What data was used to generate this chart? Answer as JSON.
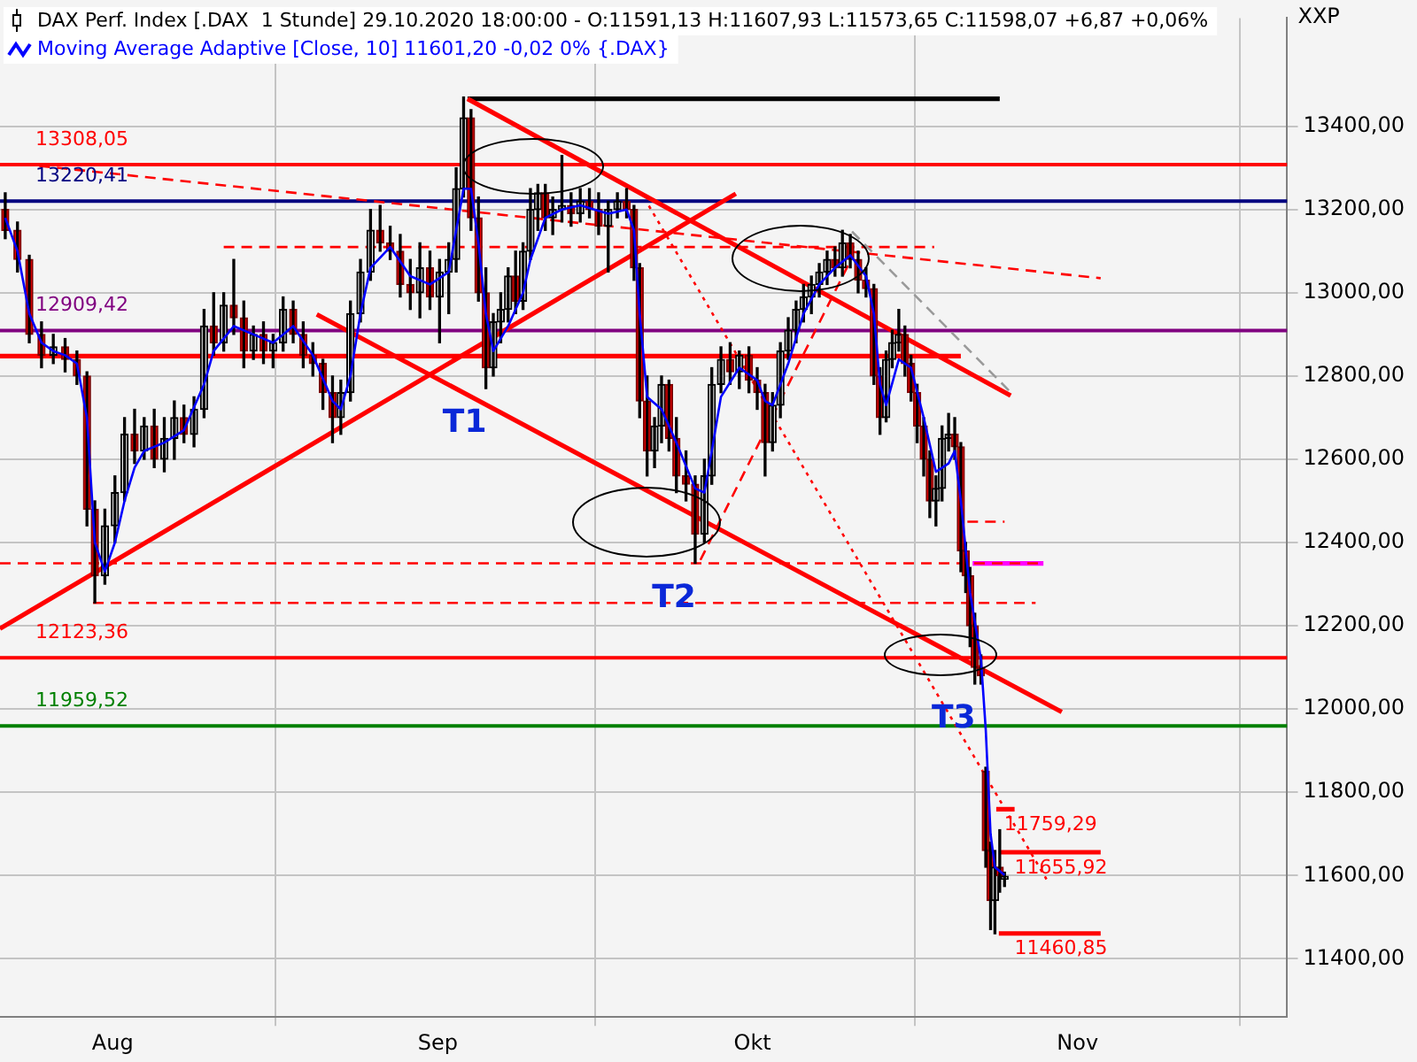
{
  "chart_data": {
    "type": "candlestick",
    "title": "DAX Perf. Index [.DAX  1 Stunde] 29.10.2020 18:00:00 - O:11591,13 H:11607,93 L:11573,65 C:11598,07 +6,87 +0,06%",
    "annotations": [
      "XXP",
      {
        "text": "T1",
        "x": "2020-09-05T14:00",
        "y": 12770
      },
      {
        "text": "T2",
        "x": "2020-09-25T13:00",
        "y": 12350
      },
      {
        "text": "T3",
        "x": "2020-10-22T05:00",
        "y": 12060
      },
      {
        "text": "11759,29",
        "x": "2020-10-25T00:00",
        "y": 11759.29
      },
      {
        "text": "11655,92",
        "x": "2020-10-26T00:00",
        "y": 11655.92
      },
      {
        "text": "11460,85",
        "x": "2020-10-26T00:00",
        "y": 11460.85
      }
    ],
    "x": [
      "2020-07-21T18:00",
      "2020-07-22T22:00",
      "2020-07-24T01:00",
      "2020-07-25T05:00",
      "2020-07-26T08:00",
      "2020-07-27T11:00",
      "2020-07-28T14:00",
      "2020-07-29T13:00",
      "2020-07-30T07:00",
      "2020-07-31T06:00",
      "2020-08-01T05:00",
      "2020-08-02T03:00",
      "2020-08-03T02:00",
      "2020-08-04T00:00",
      "2020-08-04T23:00",
      "2020-08-05T22:00",
      "2020-08-06T21:00",
      "2020-08-07T19:00",
      "2020-08-08T18:00",
      "2020-08-09T17:00",
      "2020-08-10T15:00",
      "2020-08-11T14:00",
      "2020-08-12T13:00",
      "2020-08-13T12:00",
      "2020-08-14T10:00",
      "2020-08-15T09:00",
      "2020-08-16T07:00",
      "2020-08-17T06:00",
      "2020-08-18T05:00",
      "2020-08-19T04:00",
      "2020-08-20T02:00",
      "2020-08-21T01:00",
      "2020-08-21T23:00",
      "2020-08-22T18:00",
      "2020-08-23T16:00",
      "2020-08-24T15:00",
      "2020-08-25T14:00",
      "2020-08-26T12:00",
      "2020-08-27T11:00",
      "2020-08-28T10:00",
      "2020-08-29T09:00",
      "2020-08-30T07:00",
      "2020-08-31T06:00",
      "2020-09-01T04:00",
      "2020-09-02T01:00",
      "2020-09-02T18:00",
      "2020-09-03T11:00",
      "2020-09-04T04:00",
      "2020-09-04T21:00",
      "2020-09-05T14:00",
      "2020-09-06T07:00",
      "2020-09-07T00:00",
      "2020-09-07T17:00",
      "2020-09-08T10:00",
      "2020-09-09T03:00",
      "2020-09-09T20:00",
      "2020-09-10T13:00",
      "2020-09-11T06:00",
      "2020-09-11T23:00",
      "2020-09-12T20:00",
      "2020-09-13T17:00",
      "2020-09-14T14:00",
      "2020-09-15T11:00",
      "2020-09-16T08:00",
      "2020-09-17T06:00",
      "2020-09-18T03:00",
      "2020-09-19T00:00",
      "2020-09-19T17:00",
      "2020-09-20T06:00",
      "2020-09-20T23:00",
      "2020-09-21T16:00",
      "2020-09-22T08:00",
      "2020-09-23T01:00",
      "2020-09-23T18:00",
      "2020-09-24T16:00",
      "2020-09-25T13:00",
      "2020-09-26T10:00",
      "2020-09-27T03:00",
      "2020-09-28T00:00",
      "2020-09-28T21:00",
      "2020-09-29T18:00",
      "2020-09-30T16:00",
      "2020-10-01T11:00",
      "2020-10-02T05:00",
      "2020-10-02T22:00",
      "2020-10-03T16:00",
      "2020-10-04T10:00",
      "2020-10-05T04:00",
      "2020-10-05T21:00",
      "2020-10-06T15:00",
      "2020-10-07T09:00",
      "2020-10-08T03:00",
      "2020-10-08T21:00",
      "2020-10-09T14:00",
      "2020-10-10T08:00",
      "2020-10-11T02:00",
      "2020-10-11T20:00",
      "2020-10-12T14:00",
      "2020-10-13T04:00",
      "2020-10-13T18:00",
      "2020-10-14T08:00",
      "2020-10-14T23:00",
      "2020-10-15T13:00",
      "2020-10-16T03:00",
      "2020-10-16T17:00",
      "2020-10-17T08:00",
      "2020-10-17T22:00",
      "2020-10-18T12:00",
      "2020-10-19T02:00",
      "2020-10-19T17:00",
      "2020-10-20T07:00",
      "2020-10-20T21:00",
      "2020-10-21T08:00",
      "2020-10-21T18:00",
      "2020-10-22T05:00",
      "2020-10-22T19:00",
      "2020-10-23T06:00",
      "2020-10-23T17:00",
      "2020-10-24T03:00",
      "2020-10-24T14:00",
      "2020-10-25T01:00"
    ],
    "ohlc": [
      [
        13200,
        13240,
        13130,
        13150
      ],
      [
        13150,
        13170,
        13050,
        13080
      ],
      [
        13080,
        13090,
        12880,
        12900
      ],
      [
        12900,
        12930,
        12820,
        12850
      ],
      [
        12850,
        12900,
        12830,
        12870
      ],
      [
        12870,
        12890,
        12810,
        12840
      ],
      [
        12840,
        12860,
        12780,
        12800
      ],
      [
        12800,
        12810,
        12440,
        12480
      ],
      [
        12480,
        12500,
        12255,
        12320
      ],
      [
        12320,
        12480,
        12300,
        12440
      ],
      [
        12440,
        12560,
        12400,
        12520
      ],
      [
        12520,
        12700,
        12500,
        12660
      ],
      [
        12660,
        12720,
        12590,
        12620
      ],
      [
        12620,
        12700,
        12600,
        12680
      ],
      [
        12680,
        12720,
        12580,
        12600
      ],
      [
        12600,
        12700,
        12570,
        12650
      ],
      [
        12650,
        12740,
        12600,
        12700
      ],
      [
        12700,
        12730,
        12640,
        12660
      ],
      [
        12660,
        12750,
        12630,
        12720
      ],
      [
        12720,
        12960,
        12700,
        12920
      ],
      [
        12920,
        13000,
        12850,
        12880
      ],
      [
        12880,
        13000,
        12860,
        12970
      ],
      [
        12970,
        13080,
        12900,
        12940
      ],
      [
        12940,
        12980,
        12820,
        12860
      ],
      [
        12860,
        12920,
        12840,
        12900
      ],
      [
        12900,
        12930,
        12830,
        12860
      ],
      [
        12860,
        12900,
        12820,
        12880
      ],
      [
        12880,
        12990,
        12860,
        12960
      ],
      [
        12960,
        12980,
        12880,
        12900
      ],
      [
        12900,
        12930,
        12820,
        12850
      ],
      [
        12850,
        12880,
        12800,
        12830
      ],
      [
        12830,
        12840,
        12720,
        12760
      ],
      [
        12760,
        12800,
        12640,
        12700
      ],
      [
        12700,
        12790,
        12660,
        12760
      ],
      [
        12760,
        12980,
        12740,
        12950
      ],
      [
        12950,
        13080,
        12930,
        13050
      ],
      [
        13050,
        13200,
        13030,
        13150
      ],
      [
        13150,
        13210,
        13100,
        13120
      ],
      [
        13120,
        13160,
        13080,
        13100
      ],
      [
        13100,
        13140,
        12990,
        13020
      ],
      [
        13020,
        13080,
        12960,
        13000
      ],
      [
        13000,
        13120,
        12940,
        13060
      ],
      [
        13060,
        13100,
        12960,
        12990
      ],
      [
        12990,
        13080,
        12880,
        13050
      ],
      [
        13050,
        13120,
        12950,
        13080
      ],
      [
        13080,
        13300,
        13050,
        13250
      ],
      [
        13250,
        13470,
        13230,
        13420
      ],
      [
        13420,
        13440,
        13150,
        13180
      ],
      [
        13180,
        13230,
        12980,
        13000
      ],
      [
        13000,
        13060,
        12770,
        12820
      ],
      [
        12820,
        12950,
        12800,
        12930
      ],
      [
        12930,
        13000,
        12880,
        12960
      ],
      [
        12960,
        13060,
        12930,
        13040
      ],
      [
        13040,
        13100,
        12950,
        12980
      ],
      [
        12980,
        13120,
        12960,
        13100
      ],
      [
        13100,
        13250,
        13080,
        13200
      ],
      [
        13200,
        13260,
        13150,
        13240
      ],
      [
        13240,
        13260,
        13150,
        13180
      ],
      [
        13180,
        13230,
        13140,
        13200
      ],
      [
        13200,
        13330,
        13170,
        13210
      ],
      [
        13210,
        13240,
        13160,
        13190
      ],
      [
        13190,
        13250,
        13170,
        13220
      ],
      [
        13220,
        13250,
        13180,
        13200
      ],
      [
        13200,
        13240,
        13140,
        13160
      ],
      [
        13160,
        13220,
        13050,
        13200
      ],
      [
        13200,
        13240,
        13180,
        13220
      ],
      [
        13220,
        13250,
        13180,
        13200
      ],
      [
        13200,
        13210,
        13030,
        13060
      ],
      [
        13060,
        13070,
        12700,
        12740
      ],
      [
        12740,
        12800,
        12560,
        12620
      ],
      [
        12620,
        12700,
        12580,
        12680
      ],
      [
        12680,
        12800,
        12640,
        12780
      ],
      [
        12780,
        12790,
        12620,
        12650
      ],
      [
        12650,
        12700,
        12520,
        12560
      ],
      [
        12560,
        12620,
        12500,
        12540
      ],
      [
        12540,
        12560,
        12350,
        12420
      ],
      [
        12420,
        12600,
        12400,
        12560
      ],
      [
        12560,
        12820,
        12540,
        12780
      ],
      [
        12780,
        12870,
        12760,
        12840
      ],
      [
        12840,
        12880,
        12780,
        12810
      ],
      [
        12810,
        12860,
        12770,
        12850
      ],
      [
        12850,
        12870,
        12760,
        12790
      ],
      [
        12790,
        12820,
        12720,
        12760
      ],
      [
        12760,
        12780,
        12560,
        12640
      ],
      [
        12640,
        12760,
        12620,
        12730
      ],
      [
        12730,
        12880,
        12700,
        12860
      ],
      [
        12860,
        12940,
        12840,
        12910
      ],
      [
        12910,
        12980,
        12880,
        12960
      ],
      [
        12960,
        13020,
        12930,
        12990
      ],
      [
        12990,
        13040,
        12950,
        13020
      ],
      [
        13020,
        13070,
        12990,
        13050
      ],
      [
        13050,
        13100,
        13020,
        13080
      ],
      [
        13080,
        13110,
        13040,
        13060
      ],
      [
        13060,
        13150,
        13040,
        13120
      ],
      [
        13120,
        13140,
        13060,
        13080
      ],
      [
        13080,
        13100,
        13000,
        13030
      ],
      [
        13030,
        13060,
        12990,
        13010
      ],
      [
        13010,
        13020,
        12780,
        12800
      ],
      [
        12800,
        12820,
        12660,
        12700
      ],
      [
        12700,
        12860,
        12690,
        12840
      ],
      [
        12840,
        12910,
        12820,
        12880
      ],
      [
        12880,
        12960,
        12860,
        12900
      ],
      [
        12900,
        12920,
        12800,
        12830
      ],
      [
        12830,
        12850,
        12740,
        12760
      ],
      [
        12760,
        12780,
        12640,
        12680
      ],
      [
        12680,
        12700,
        12560,
        12600
      ],
      [
        12600,
        12620,
        12460,
        12500
      ],
      [
        12500,
        12560,
        12440,
        12530
      ],
      [
        12530,
        12680,
        12500,
        12650
      ],
      [
        12650,
        12710,
        12620,
        12660
      ],
      [
        12660,
        12700,
        12600,
        12630
      ],
      [
        12630,
        12640,
        12330,
        12380
      ],
      [
        12380,
        12400,
        12280,
        12320
      ],
      [
        12320,
        12340,
        12150,
        12200
      ],
      [
        12200,
        12230,
        12060,
        12100
      ],
      [
        12100,
        12130,
        12060,
        12080
      ],
      [
        11850,
        11860,
        11620,
        11660
      ],
      [
        11660,
        11680,
        11470,
        11540
      ],
      [
        11540,
        11660,
        11460,
        11620
      ],
      [
        11620,
        11710,
        11560,
        11600
      ],
      [
        11591.13,
        11607.93,
        11573.65,
        11598.07
      ]
    ],
    "series": [
      {
        "type": "line",
        "name": "Moving Average Adaptive [Close, 10] 11601,20 -0,02 0% {.DAX}",
        "color": "#0000ff",
        "x": [
          "2020-07-21T18:00",
          "2020-07-22T22:00",
          "2020-07-24T01:00",
          "2020-07-25T05:00",
          "2020-07-26T08:00",
          "2020-07-27T11:00",
          "2020-07-28T14:00",
          "2020-07-29T13:00",
          "2020-07-30T07:00",
          "2020-07-31T06:00",
          "2020-08-01T05:00",
          "2020-08-02T03:00",
          "2020-08-03T02:00",
          "2020-08-04T00:00",
          "2020-08-05T22:00",
          "2020-08-07T19:00",
          "2020-08-09T17:00",
          "2020-08-10T15:00",
          "2020-08-12T13:00",
          "2020-08-14T10:00",
          "2020-08-16T07:00",
          "2020-08-18T05:00",
          "2020-08-20T02:00",
          "2020-08-21T23:00",
          "2020-08-22T18:00",
          "2020-08-23T16:00",
          "2020-08-24T15:00",
          "2020-08-25T14:00",
          "2020-08-27T11:00",
          "2020-08-29T09:00",
          "2020-08-31T06:00",
          "2020-09-02T01:00",
          "2020-09-02T18:00",
          "2020-09-03T11:00",
          "2020-09-04T04:00",
          "2020-09-04T21:00",
          "2020-09-05T14:00",
          "2020-09-06T07:00",
          "2020-09-07T17:00",
          "2020-09-09T03:00",
          "2020-09-09T20:00",
          "2020-09-11T06:00",
          "2020-09-12T20:00",
          "2020-09-14T14:00",
          "2020-09-17T06:00",
          "2020-09-19T00:00",
          "2020-09-19T17:00",
          "2020-09-20T06:00",
          "2020-09-20T23:00",
          "2020-09-22T08:00",
          "2020-09-23T18:00",
          "2020-09-25T13:00",
          "2020-09-26T10:00",
          "2020-09-27T03:00",
          "2020-09-28T00:00",
          "2020-09-29T18:00",
          "2020-10-01T11:00",
          "2020-10-02T05:00",
          "2020-10-02T22:00",
          "2020-10-04T10:00",
          "2020-10-05T21:00",
          "2020-10-07T09:00",
          "2020-10-08T21:00",
          "2020-10-10T08:00",
          "2020-10-11T20:00",
          "2020-10-12T14:00",
          "2020-10-13T04:00",
          "2020-10-13T18:00",
          "2020-10-14T23:00",
          "2020-10-16T03:00",
          "2020-10-17T08:00",
          "2020-10-18T12:00",
          "2020-10-19T17:00",
          "2020-10-20T07:00",
          "2020-10-20T21:00",
          "2020-10-21T18:00",
          "2020-10-22T19:00",
          "2020-10-23T06:00",
          "2020-10-23T17:00",
          "2020-10-24T03:00",
          "2020-10-25T01:00"
        ],
        "values": [
          13180,
          13100,
          12950,
          12880,
          12860,
          12850,
          12830,
          12700,
          12400,
          12330,
          12400,
          12500,
          12580,
          12620,
          12640,
          12670,
          12780,
          12860,
          12920,
          12900,
          12880,
          12920,
          12850,
          12740,
          12720,
          12800,
          12950,
          13060,
          13110,
          13040,
          13020,
          13050,
          13150,
          13250,
          13250,
          13120,
          12950,
          12860,
          12920,
          13000,
          13080,
          13180,
          13200,
          13210,
          13190,
          13200,
          13150,
          12950,
          12750,
          12720,
          12640,
          12530,
          12520,
          12620,
          12750,
          12820,
          12790,
          12740,
          12730,
          12830,
          12950,
          13020,
          13060,
          13090,
          13040,
          12950,
          12780,
          12730,
          12840,
          12820,
          12700,
          12570,
          12590,
          12620,
          12500,
          12280,
          12120,
          11950,
          11700,
          11620,
          11601.2
        ]
      },
      {
        "type": "line",
        "color": "#ff0000",
        "x": [
          "2020-07-21T06:00",
          "2020-09-29T10:00"
        ],
        "values": [
          12193,
          13238
        ]
      },
      {
        "type": "line",
        "color": "#ff0000",
        "x": [
          "2020-08-20T11:00",
          "2020-10-30T12:00"
        ],
        "values": [
          12948,
          11993
        ]
      },
      {
        "type": "line",
        "color": "#ff0000",
        "x": [
          "2020-09-03T20:00",
          "2020-10-25T15:00"
        ],
        "values": [
          13466,
          12753
        ]
      },
      {
        "type": "line",
        "color": "#999999",
        "line_style": "dashed",
        "x": [
          "2020-10-10T12:00",
          "2020-10-25T15:00"
        ],
        "values": [
          13147,
          12761
        ]
      },
      {
        "type": "line",
        "color": "#ff0000",
        "line_style": "dashed",
        "x": [
          "2020-07-25T00:00",
          "2020-11-03T05:00"
        ],
        "values": [
          13305,
          13035
        ]
      },
      {
        "type": "line",
        "color": "#ff0000",
        "line_style": "dashed",
        "x": [
          "2020-08-11T14:00",
          "2020-10-18T08:00"
        ],
        "values": [
          13110,
          13110
        ]
      },
      {
        "type": "line",
        "color": "#ff0000",
        "line_style": "dotted",
        "x": [
          "2020-09-21T03:00",
          "2020-10-29T01:00"
        ],
        "values": [
          13209,
          11591
        ]
      },
      {
        "type": "line",
        "color": "#ff0000",
        "line_style": "dashed",
        "x": [
          "2020-09-26T01:00",
          "2020-10-10T12:00"
        ],
        "values": [
          12358,
          13085
        ]
      },
      {
        "type": "line",
        "color": "#000000",
        "x": [
          "2020-09-03T20:00",
          "2020-10-24T14:00"
        ],
        "values": [
          13466,
          13466
        ]
      },
      {
        "type": "line",
        "color": "#ff0000",
        "line_style": "dashed",
        "x": [
          "2020-07-21T06:00",
          "2020-10-28T18:00"
        ],
        "values": [
          12350,
          12350
        ]
      },
      {
        "type": "line",
        "color": "#ff0000",
        "line_style": "dashed",
        "x": [
          "2020-07-30T03:00",
          "2020-10-28T00:00"
        ],
        "values": [
          12255,
          12255
        ]
      },
      {
        "type": "line",
        "color": "#ff0000",
        "x": [
          "2020-07-21T06:00",
          "2020-10-20T21:00"
        ],
        "values": [
          12848,
          12848
        ]
      },
      {
        "type": "line",
        "color": "#ff00ff",
        "x": [
          "2020-10-22T00:00",
          "2020-10-28T18:00"
        ],
        "values": [
          12350,
          12350
        ]
      },
      {
        "type": "line",
        "color": "#ff0000",
        "line_style": "dashed",
        "x": [
          "2020-10-21T12:00",
          "2020-10-25T01:00"
        ],
        "values": [
          12450,
          12450
        ]
      },
      {
        "type": "line",
        "color": "#ff0000",
        "x": [
          "2020-10-24T06:00",
          "2020-10-26T00:00"
        ],
        "values": [
          11759.29,
          11759.29
        ]
      },
      {
        "type": "line",
        "color": "#ff0000",
        "x": [
          "2020-10-24T12:00",
          "2020-11-03T05:00"
        ],
        "values": [
          11655.92,
          11655.92
        ]
      },
      {
        "type": "line",
        "color": "#ff0000",
        "x": [
          "2020-10-24T12:00",
          "2020-11-03T05:00"
        ],
        "values": [
          11460.85,
          11460.85
        ]
      }
    ],
    "ref_lines": [
      {
        "axis": "y",
        "value": 13308.05,
        "label": "13308,05",
        "color": "#ff0000"
      },
      {
        "axis": "y",
        "value": 13220.41,
        "label": "13220,41",
        "color": "#000080"
      },
      {
        "axis": "y",
        "value": 12909.42,
        "label": "12909,42",
        "color": "#800080"
      },
      {
        "axis": "y",
        "value": 12123.36,
        "label": "12123,36",
        "color": "#ff0000"
      },
      {
        "axis": "y",
        "value": 11959.52,
        "label": "11959,52",
        "color": "#008000"
      }
    ],
    "xlim": [
      "2020-07-21T06:00",
      "2020-11-21"
    ],
    "xticks": [
      {
        "value": "2020-08-01",
        "label": "Aug"
      },
      {
        "value": "2020-09-01",
        "label": "Sep"
      },
      {
        "value": "2020-10-01",
        "label": "Okt"
      },
      {
        "value": "2020-11-01",
        "label": "Nov"
      }
    ],
    "ylim": [
      11260,
      13660
    ],
    "yticks": [
      {
        "value": 11400,
        "label": "11400,00"
      },
      {
        "value": 11600,
        "label": "11600,00"
      },
      {
        "value": 11800,
        "label": "11800,00"
      },
      {
        "value": 12000,
        "label": "12000,00"
      },
      {
        "value": 12200,
        "label": "12200,00"
      },
      {
        "value": 12400,
        "label": "12400,00"
      },
      {
        "value": 12600,
        "label": "12600,00"
      },
      {
        "value": 12800,
        "label": "12800,00"
      },
      {
        "value": 13000,
        "label": "13000,00"
      },
      {
        "value": 13200,
        "label": "13200,00"
      },
      {
        "value": 13400,
        "label": "13400,00"
      }
    ],
    "grid": true,
    "legend": "top left",
    "marker": "none"
  }
}
